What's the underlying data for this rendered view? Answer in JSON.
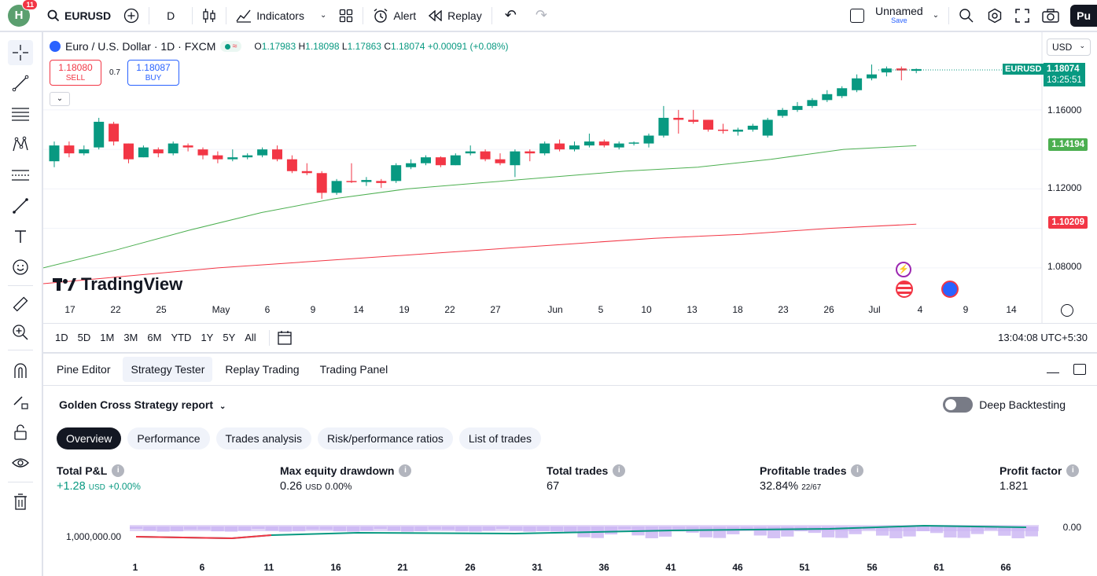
{
  "topbar": {
    "avatar_letter": "H",
    "notif_count": "11",
    "symbol": "EURUSD",
    "interval": "D",
    "indicators": "Indicators",
    "alert": "Alert",
    "replay": "Replay",
    "layout_name": "Unnamed",
    "layout_save": "Save",
    "publish": "Pu"
  },
  "legend": {
    "title": "Euro / U.S. Dollar · 1D · FXCM",
    "o_label": "O",
    "o": "1.17983",
    "h_label": "H",
    "h": "1.18098",
    "l_label": "L",
    "l": "1.17863",
    "c_label": "C",
    "c": "1.18074",
    "change": "+0.00091 (+0.08%)"
  },
  "trade": {
    "sell_price": "1.18080",
    "sell_label": "SELL",
    "spread": "0.7",
    "buy_price": "1.18087",
    "buy_label": "BUY"
  },
  "currency": "USD",
  "watermark": "TradingView",
  "price_axis": {
    "ticks": [
      "1.16000",
      "1.12000",
      "1.08000"
    ],
    "last_symbol": "EURUSD",
    "last_price": "1.18074",
    "countdown": "13:25:51",
    "ma_green": "1.14194",
    "ma_red": "1.10209"
  },
  "time_axis": [
    "17",
    "22",
    "25",
    "May",
    "6",
    "9",
    "14",
    "19",
    "22",
    "27",
    "Jun",
    "5",
    "10",
    "13",
    "18",
    "23",
    "26",
    "Jul",
    "4",
    "9",
    "14"
  ],
  "ranges": [
    "1D",
    "5D",
    "1M",
    "3M",
    "6M",
    "YTD",
    "1Y",
    "5Y",
    "All"
  ],
  "clock": "13:04:08 UTC+5:30",
  "bottom_tabs": [
    "Pine Editor",
    "Strategy Tester",
    "Replay Trading",
    "Trading Panel"
  ],
  "report": {
    "title": "Golden Cross Strategy report",
    "deep_backtesting": "Deep Backtesting",
    "pills": [
      "Overview",
      "Performance",
      "Trades analysis",
      "Risk/performance ratios",
      "List of trades"
    ],
    "stats": {
      "pnl_label": "Total P&L",
      "pnl_value": "+1.28",
      "pnl_unit": "USD",
      "pnl_pct": "+0.00%",
      "dd_label": "Max equity drawdown",
      "dd_value": "0.26",
      "dd_unit": "USD",
      "dd_pct": "0.00%",
      "trades_label": "Total trades",
      "trades_value": "67",
      "profitable_label": "Profitable trades",
      "profitable_value": "32.84%",
      "profitable_ratio": "22/67",
      "pf_label": "Profit factor",
      "pf_value": "1.821"
    },
    "equity_left_label": "1,000,000.00",
    "equity_right_label": "0.00",
    "equity_x_ticks": [
      "1",
      "6",
      "11",
      "16",
      "21",
      "26",
      "31",
      "36",
      "41",
      "46",
      "51",
      "56",
      "61",
      "66"
    ]
  },
  "colors": {
    "up": "#089981",
    "down": "#f23645",
    "ma_fast": "#4caf50",
    "ma_slow": "#f23645",
    "accent": "#2962ff"
  },
  "chart_data": {
    "type": "candlestick",
    "candles": [
      {
        "o": 1.134,
        "h": 1.144,
        "l": 1.131,
        "c": 1.142
      },
      {
        "o": 1.142,
        "h": 1.144,
        "l": 1.136,
        "c": 1.138
      },
      {
        "o": 1.138,
        "h": 1.142,
        "l": 1.137,
        "c": 1.14
      },
      {
        "o": 1.141,
        "h": 1.156,
        "l": 1.14,
        "c": 1.154
      },
      {
        "o": 1.153,
        "h": 1.154,
        "l": 1.142,
        "c": 1.144
      },
      {
        "o": 1.143,
        "h": 1.143,
        "l": 1.133,
        "c": 1.135
      },
      {
        "o": 1.136,
        "h": 1.142,
        "l": 1.136,
        "c": 1.141
      },
      {
        "o": 1.14,
        "h": 1.141,
        "l": 1.136,
        "c": 1.138
      },
      {
        "o": 1.138,
        "h": 1.144,
        "l": 1.137,
        "c": 1.143
      },
      {
        "o": 1.142,
        "h": 1.143,
        "l": 1.139,
        "c": 1.141
      },
      {
        "o": 1.14,
        "h": 1.141,
        "l": 1.135,
        "c": 1.137
      },
      {
        "o": 1.137,
        "h": 1.139,
        "l": 1.133,
        "c": 1.135
      },
      {
        "o": 1.135,
        "h": 1.14,
        "l": 1.134,
        "c": 1.136
      },
      {
        "o": 1.136,
        "h": 1.138,
        "l": 1.135,
        "c": 1.137
      },
      {
        "o": 1.137,
        "h": 1.141,
        "l": 1.136,
        "c": 1.14
      },
      {
        "o": 1.14,
        "h": 1.142,
        "l": 1.134,
        "c": 1.135
      },
      {
        "o": 1.135,
        "h": 1.137,
        "l": 1.128,
        "c": 1.129
      },
      {
        "o": 1.129,
        "h": 1.133,
        "l": 1.127,
        "c": 1.128
      },
      {
        "o": 1.128,
        "h": 1.129,
        "l": 1.115,
        "c": 1.118
      },
      {
        "o": 1.118,
        "h": 1.125,
        "l": 1.117,
        "c": 1.124
      },
      {
        "o": 1.124,
        "h": 1.133,
        "l": 1.123,
        "c": 1.1235
      },
      {
        "o": 1.1235,
        "h": 1.126,
        "l": 1.1215,
        "c": 1.1245
      },
      {
        "o": 1.124,
        "h": 1.125,
        "l": 1.1205,
        "c": 1.123
      },
      {
        "o": 1.124,
        "h": 1.133,
        "l": 1.123,
        "c": 1.132
      },
      {
        "o": 1.131,
        "h": 1.135,
        "l": 1.13,
        "c": 1.133
      },
      {
        "o": 1.133,
        "h": 1.137,
        "l": 1.132,
        "c": 1.136
      },
      {
        "o": 1.136,
        "h": 1.1365,
        "l": 1.131,
        "c": 1.132
      },
      {
        "o": 1.132,
        "h": 1.138,
        "l": 1.132,
        "c": 1.137
      },
      {
        "o": 1.138,
        "h": 1.142,
        "l": 1.137,
        "c": 1.139
      },
      {
        "o": 1.139,
        "h": 1.14,
        "l": 1.134,
        "c": 1.135
      },
      {
        "o": 1.135,
        "h": 1.138,
        "l": 1.132,
        "c": 1.133
      },
      {
        "o": 1.132,
        "h": 1.14,
        "l": 1.126,
        "c": 1.139
      },
      {
        "o": 1.139,
        "h": 1.14,
        "l": 1.134,
        "c": 1.138
      },
      {
        "o": 1.138,
        "h": 1.144,
        "l": 1.137,
        "c": 1.143
      },
      {
        "o": 1.143,
        "h": 1.145,
        "l": 1.139,
        "c": 1.14
      },
      {
        "o": 1.14,
        "h": 1.144,
        "l": 1.139,
        "c": 1.142
      },
      {
        "o": 1.142,
        "h": 1.148,
        "l": 1.141,
        "c": 1.144
      },
      {
        "o": 1.144,
        "h": 1.145,
        "l": 1.141,
        "c": 1.142
      },
      {
        "o": 1.141,
        "h": 1.144,
        "l": 1.14,
        "c": 1.143
      },
      {
        "o": 1.143,
        "h": 1.144,
        "l": 1.142,
        "c": 1.1435
      },
      {
        "o": 1.143,
        "h": 1.148,
        "l": 1.141,
        "c": 1.147
      },
      {
        "o": 1.147,
        "h": 1.162,
        "l": 1.146,
        "c": 1.156
      },
      {
        "o": 1.156,
        "h": 1.16,
        "l": 1.148,
        "c": 1.155
      },
      {
        "o": 1.155,
        "h": 1.16,
        "l": 1.153,
        "c": 1.154
      },
      {
        "o": 1.155,
        "h": 1.155,
        "l": 1.149,
        "c": 1.15
      },
      {
        "o": 1.15,
        "h": 1.153,
        "l": 1.148,
        "c": 1.1495
      },
      {
        "o": 1.149,
        "h": 1.151,
        "l": 1.147,
        "c": 1.15
      },
      {
        "o": 1.15,
        "h": 1.153,
        "l": 1.149,
        "c": 1.152
      },
      {
        "o": 1.147,
        "h": 1.156,
        "l": 1.146,
        "c": 1.155
      },
      {
        "o": 1.157,
        "h": 1.161,
        "l": 1.156,
        "c": 1.16
      },
      {
        "o": 1.16,
        "h": 1.164,
        "l": 1.159,
        "c": 1.162
      },
      {
        "o": 1.162,
        "h": 1.166,
        "l": 1.161,
        "c": 1.165
      },
      {
        "o": 1.165,
        "h": 1.17,
        "l": 1.164,
        "c": 1.168
      },
      {
        "o": 1.167,
        "h": 1.172,
        "l": 1.166,
        "c": 1.171
      },
      {
        "o": 1.17,
        "h": 1.178,
        "l": 1.169,
        "c": 1.176
      },
      {
        "o": 1.176,
        "h": 1.183,
        "l": 1.175,
        "c": 1.178
      },
      {
        "o": 1.179,
        "h": 1.182,
        "l": 1.177,
        "c": 1.181
      },
      {
        "o": 1.181,
        "h": 1.182,
        "l": 1.175,
        "c": 1.18
      },
      {
        "o": 1.1798,
        "h": 1.181,
        "l": 1.1786,
        "c": 1.1807
      }
    ],
    "ma_fast": [
      1.08,
      1.089,
      1.099,
      1.108,
      1.115,
      1.12,
      1.123,
      1.126,
      1.129,
      1.131,
      1.135,
      1.14,
      1.1419
    ],
    "ma_slow": [
      1.072,
      1.076,
      1.08,
      1.083,
      1.086,
      1.089,
      1.092,
      1.095,
      1.097,
      1.1,
      1.1021
    ],
    "ylim": [
      1.068,
      1.193
    ]
  }
}
